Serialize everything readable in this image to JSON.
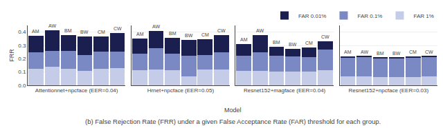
{
  "chart_data": [
    {
      "type": "bar",
      "stacked": true,
      "xlabel": "Attentionnet+npcface (EER=0.04)",
      "ylabel": "FRR",
      "annotations": [
        "Model",
        "(b) False Rejection Rate (FRR) under a given False Acceptance Rate (FAR) threshold for each group."
      ],
      "categories": [
        "AM",
        "AW",
        "BM",
        "BW",
        "CM",
        "CW"
      ],
      "series": [
        {
          "name": "FAR 1%",
          "color": "#c5cce8",
          "values": [
            0.125,
            0.14,
            0.125,
            0.11,
            0.125,
            0.13
          ]
        },
        {
          "name": "FAR 0.1%",
          "color": "#7a88c4",
          "values": [
            0.125,
            0.12,
            0.135,
            0.12,
            0.13,
            0.125
          ]
        },
        {
          "name": "FAR 0.01%",
          "color": "#1a1f50",
          "values": [
            0.12,
            0.155,
            0.118,
            0.135,
            0.112,
            0.14
          ]
        }
      ],
      "ylim": [
        0.0,
        0.45
      ],
      "yticks": [
        {
          "value": 0.0,
          "label": "0.0"
        },
        0.1,
        0.2,
        0.3,
        0.4
      ],
      "grid": true,
      "tick_labels": "y"
    },
    {
      "type": "bar",
      "stacked": true,
      "xlabel": "Hrnet+npcface (EER=0.05)",
      "categories": [
        "AM",
        "AW",
        "BM",
        "BW",
        "CM",
        "CW"
      ],
      "series": [
        {
          "name": "FAR 1%",
          "color": "#c5cce8",
          "values": [
            0.115,
            0.12,
            0.115,
            0.068,
            0.118,
            0.118
          ]
        },
        {
          "name": "FAR 0.1%",
          "color": "#7a88c4",
          "values": [
            0.125,
            0.158,
            0.125,
            0.155,
            0.108,
            0.13
          ]
        },
        {
          "name": "FAR 0.01%",
          "color": "#1a1f50",
          "values": [
            0.11,
            0.13,
            0.118,
            0.118,
            0.118,
            0.128
          ]
        }
      ],
      "ylim": [
        0.0,
        0.45
      ],
      "yticks": [
        {
          "value": 0.0,
          "label": "0.0"
        },
        0.1,
        0.2,
        0.3,
        0.4
      ],
      "grid": true,
      "tick_labels": false
    },
    {
      "type": "bar",
      "stacked": true,
      "xlabel": "Resnet152+magface (EER=0.04)",
      "categories": [
        "AM",
        "AW",
        "BM",
        "BW",
        "CM",
        "CW"
      ],
      "series": [
        {
          "name": "FAR 1%",
          "color": "#c5cce8",
          "values": [
            0.108,
            0.108,
            0.105,
            0.105,
            0.102,
            0.112
          ]
        },
        {
          "name": "FAR 0.1%",
          "color": "#7a88c4",
          "values": [
            0.115,
            0.14,
            0.118,
            0.11,
            0.11,
            0.158
          ]
        },
        {
          "name": "FAR 0.01%",
          "color": "#1a1f50",
          "values": [
            0.088,
            0.132,
            0.068,
            0.06,
            0.072,
            0.06
          ]
        }
      ],
      "ylim": [
        0.0,
        0.45
      ],
      "yticks": [
        {
          "value": 0.0,
          "label": "0.0"
        },
        0.1,
        0.2,
        0.3,
        0.4
      ],
      "grid": true,
      "tick_labels": false
    },
    {
      "type": "bar",
      "stacked": true,
      "xlabel": "Resnet152+npcface (EER=0.03)",
      "categories": [
        "AM",
        "AW",
        "BM",
        "BW",
        "CM",
        "CW"
      ],
      "series": [
        {
          "name": "FAR 1%",
          "color": "#c5cce8",
          "values": [
            0.065,
            0.065,
            0.062,
            0.062,
            0.062,
            0.065
          ]
        },
        {
          "name": "FAR 0.1%",
          "color": "#7a88c4",
          "values": [
            0.145,
            0.148,
            0.14,
            0.142,
            0.148,
            0.148
          ]
        },
        {
          "name": "FAR 0.01%",
          "color": "#1a1f50",
          "values": [
            0.005,
            0.005,
            0.005,
            0.005,
            0.005,
            0.005
          ]
        }
      ],
      "ylim": [
        0.0,
        0.45
      ],
      "yticks": [
        {
          "value": 0.0,
          "label": "0.0"
        },
        0.1,
        0.2,
        0.3,
        0.4
      ],
      "grid": true,
      "tick_labels": false,
      "legend": "upper right"
    }
  ]
}
